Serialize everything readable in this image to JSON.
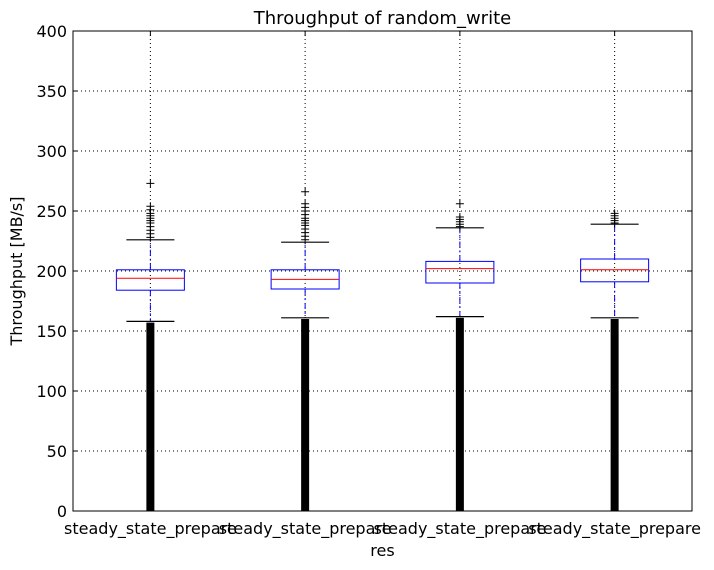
{
  "chart_data": {
    "type": "box",
    "title": "Throughput of random_write",
    "xlabel": "res",
    "ylabel": "Throughput [MB/s]",
    "ylim": [
      0,
      400
    ],
    "yticks": [
      0,
      50,
      100,
      150,
      200,
      250,
      300,
      350,
      400
    ],
    "grid": true,
    "categories": [
      "steady_state_prepare",
      "steady_state_prepare",
      "steady_state_prepare",
      "steady_state_prepare"
    ],
    "boxes": [
      {
        "whisker_low": 158,
        "q1": 184,
        "median": 194,
        "q3": 201,
        "whisker_high": 226,
        "outliers_high": [
          228,
          231,
          234,
          237,
          240,
          242,
          244,
          246,
          248,
          251,
          254,
          273
        ],
        "outliers_low_range": [
          0,
          157
        ]
      },
      {
        "whisker_low": 161,
        "q1": 185,
        "median": 193,
        "q3": 201,
        "whisker_high": 224,
        "outliers_high": [
          226,
          229,
          232,
          235,
          238,
          240,
          242,
          244,
          247,
          250,
          253,
          256,
          266
        ],
        "outliers_low_range": [
          0,
          160
        ]
      },
      {
        "whisker_low": 162,
        "q1": 190,
        "median": 202,
        "q3": 208,
        "whisker_high": 236,
        "outliers_high": [
          237,
          239,
          241,
          243,
          245,
          256
        ],
        "outliers_low_range": [
          0,
          161
        ]
      },
      {
        "whisker_low": 161,
        "q1": 191,
        "median": 201,
        "q3": 210,
        "whisker_high": 239,
        "outliers_high": [
          240,
          242,
          244,
          246,
          248
        ],
        "outliers_low_range": [
          0,
          160
        ]
      }
    ],
    "colors": {
      "box": "#0000ff",
      "median": "#ff0000",
      "whisker": "#0000ff",
      "cap": "#000000",
      "flier": "#000000"
    }
  }
}
